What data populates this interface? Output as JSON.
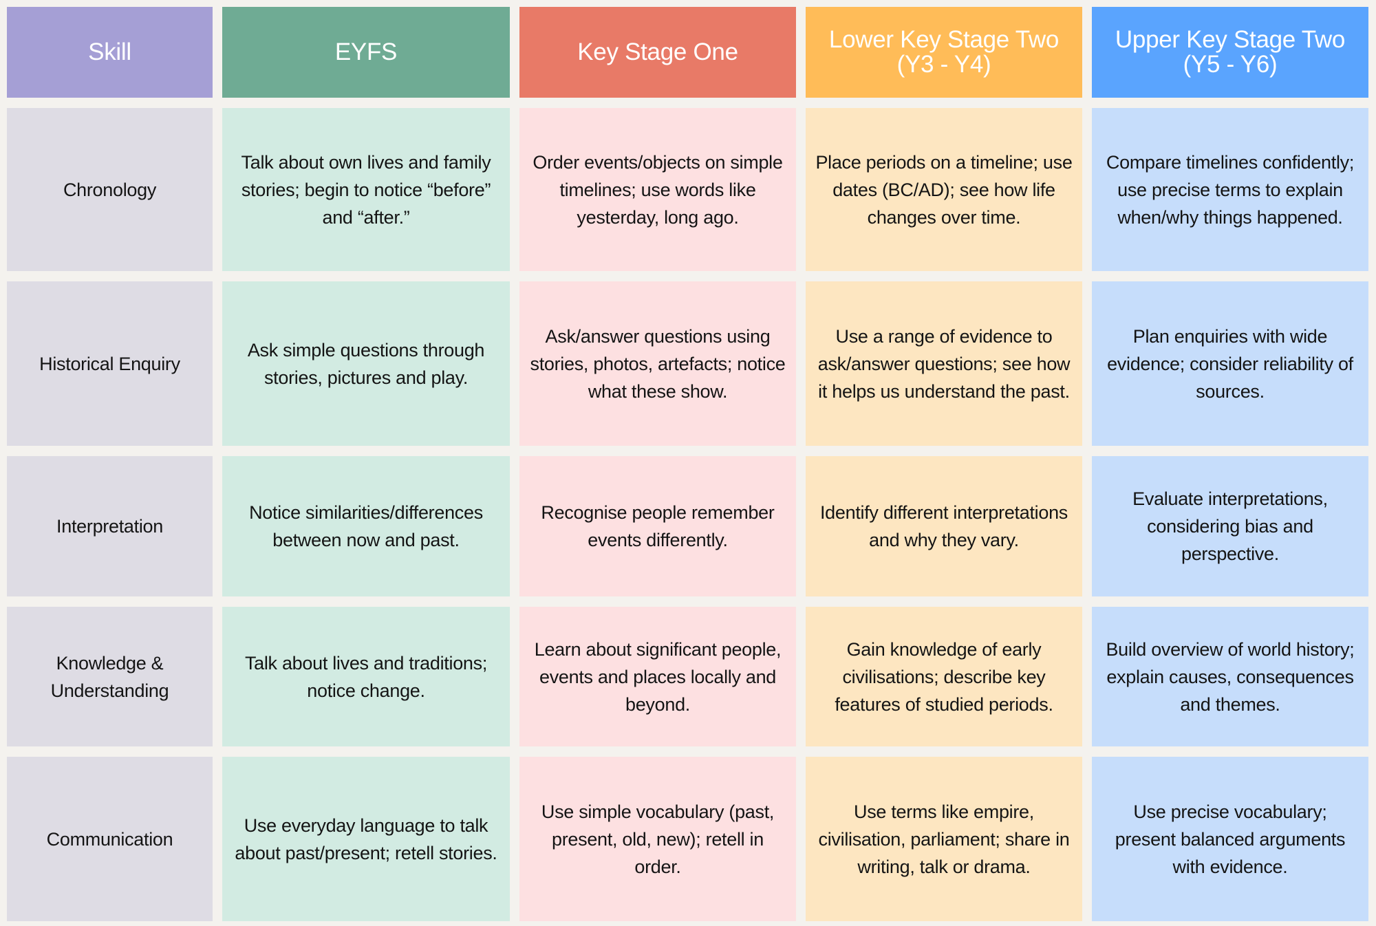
{
  "headers": [
    "Skill",
    "EYFS",
    "Key Stage One",
    "Lower Key Stage Two (Y3 - Y4)",
    "Upper Key Stage Two (Y5 - Y6)"
  ],
  "header_colors": [
    "#a59fd5",
    "#6fab94",
    "#e87a67",
    "#ffbc58",
    "#5aa4fe"
  ],
  "rows": [
    {
      "skill": "Chronology",
      "eyfs": "Talk about own lives and family stories; begin to notice “before” and “after.”",
      "ks1": "Order events/objects on simple timelines; use words like yesterday, long ago.",
      "lks2": "Place periods on a timeline; use dates (BC/AD); see how life changes over time.",
      "uks2": "Compare timelines confidently; use precise terms to explain when/why things happened."
    },
    {
      "skill": "Historical Enquiry",
      "eyfs": "Ask simple questions through stories, pictures and play.",
      "ks1": "Ask/answer questions using stories, photos, artefacts; notice what these show.",
      "lks2": "Use a range of evidence to ask/answer questions; see how it helps us understand the past.",
      "uks2": "Plan enquiries with wide evidence; consider reliability of sources."
    },
    {
      "skill": "Interpretation",
      "eyfs": "Notice similarities/differences between now and past.",
      "ks1": "Recognise people remember events differently.",
      "lks2": "Identify different interpretations and why they vary.",
      "uks2": "Evaluate interpretations, considering bias and perspective."
    },
    {
      "skill": "Knowledge & Understanding",
      "eyfs": "Talk about lives and traditions; notice change.",
      "ks1": "Learn about significant people, events and places locally and beyond.",
      "lks2": "Gain knowledge of early civilisations; describe key features of studied periods.",
      "uks2": "Build overview of world history; explain causes, consequences and themes."
    },
    {
      "skill": "Communication",
      "eyfs": "Use everyday language to talk about past/present; retell stories.",
      "ks1": "Use simple vocabulary (past, present, old, new); retell in order.",
      "lks2": "Use terms like empire, civilisation, parliament; share in writing, talk or drama.",
      "uks2": "Use precise vocabulary; present balanced arguments with evidence."
    }
  ]
}
